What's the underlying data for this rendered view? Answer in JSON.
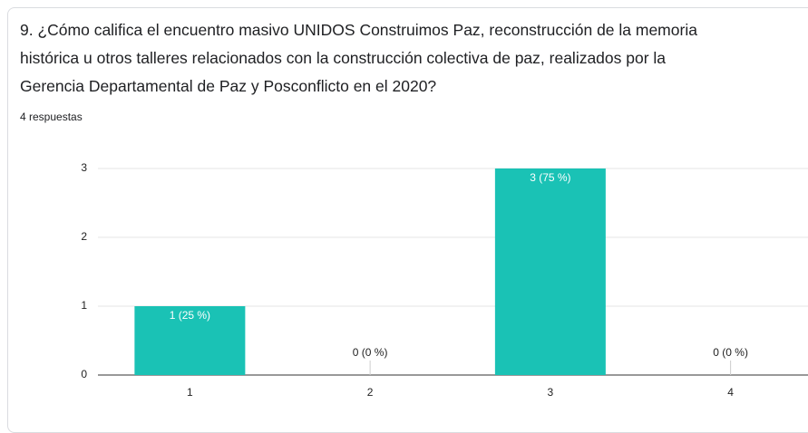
{
  "chart_data": {
    "type": "bar",
    "title": "9. ¿Cómo califica el encuentro masivo UNIDOS Construimos Paz, reconstrucción de la memoria histórica u otros talleres relacionados con la construcción colectiva de paz, realizados por la Gerencia Departamental de Paz y Posconflicto en el 2020?",
    "subtitle": "4 respuestas",
    "categories": [
      "1",
      "2",
      "3",
      "4"
    ],
    "values": [
      1,
      0,
      3,
      0
    ],
    "value_labels": [
      "1 (25 %)",
      "0 (0 %)",
      "3 (75 %)",
      "0 (0 %)"
    ],
    "color": "#1ac2b5",
    "ylim": [
      0,
      3
    ],
    "yticks": [
      0,
      1,
      2,
      3
    ],
    "grid": true
  }
}
